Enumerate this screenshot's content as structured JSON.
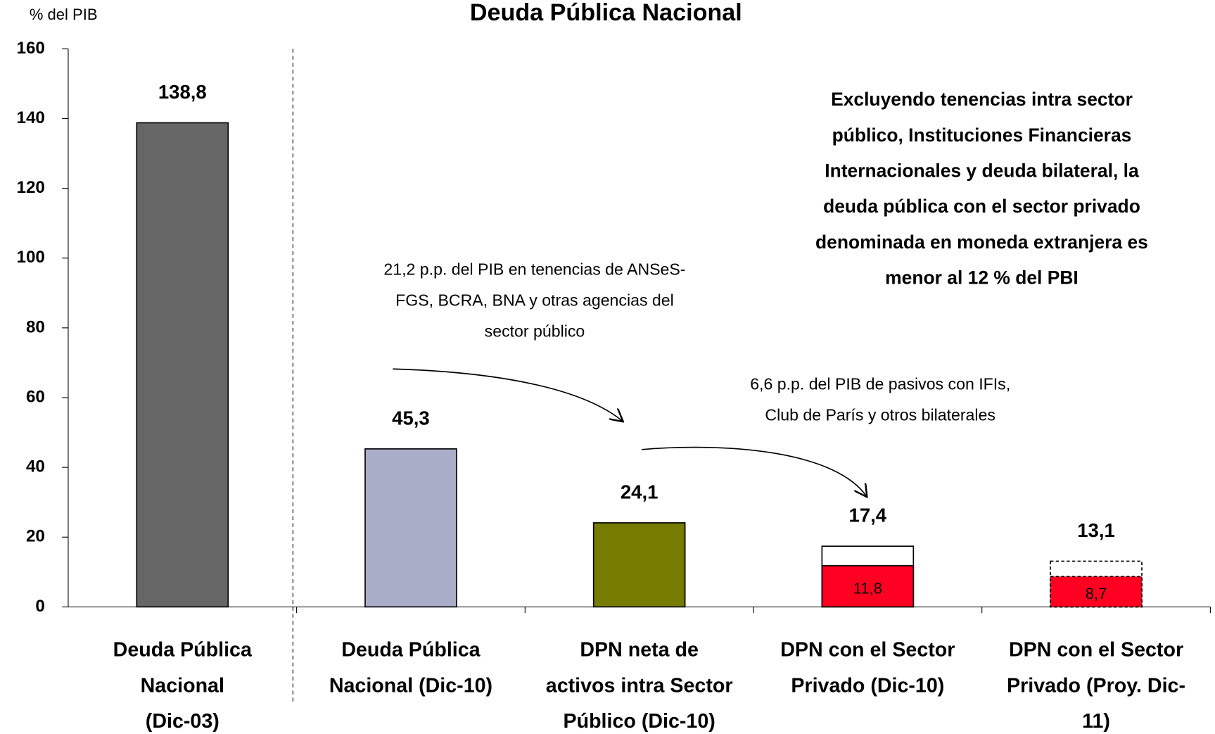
{
  "chart_data": {
    "type": "bar",
    "title": "Deuda Pública Nacional",
    "y_label": "% del PIB",
    "categories": [
      [
        "Deuda Pública",
        "Nacional",
        "(Dic-03)"
      ],
      [
        "Deuda Pública",
        "Nacional (Dic-10)"
      ],
      [
        "DPN neta de",
        "activos intra Sector",
        "Público (Dic-10)"
      ],
      [
        "DPN con el Sector",
        "Privado (Dic-10)"
      ],
      [
        "DPN con el Sector",
        "Privado (Proy. Dic-",
        "11)"
      ]
    ],
    "values": [
      138.8,
      45.3,
      24.1,
      17.4,
      13.1
    ],
    "value_labels": [
      "138,8",
      "45,3",
      "24,1",
      "17,4",
      "13,1"
    ],
    "colors": [
      "#666666",
      "#aaadc8",
      "#767c00",
      "#ffffff",
      "#ffffff"
    ],
    "outline_styles": [
      "solid",
      "solid",
      "solid",
      "solid",
      "dotted"
    ],
    "subvalues": [
      null,
      null,
      null,
      11.8,
      8.7
    ],
    "subvalue_labels": [
      null,
      null,
      null,
      "11,8",
      "8,7"
    ],
    "subvalue_color": "#ff0022",
    "ylim": [
      0,
      160
    ],
    "yticks": [
      0,
      20,
      40,
      60,
      80,
      100,
      120,
      140,
      160
    ],
    "annotations": {
      "note": [
        "Excluyendo tenencias intra sector",
        "público, Instituciones Financieras",
        "Internacionales y deuda bilateral, la",
        "deuda pública con el sector privado",
        "denominada en moneda extranjera es",
        "menor al 12 % del PBI"
      ],
      "arrow1": [
        "21,2 p.p. del PIB en tenencias de ANSeS-",
        "FGS, BCRA, BNA y otras agencias del",
        "sector público"
      ],
      "arrow2": [
        "6,6 p.p. del PIB de pasivos con IFIs,",
        "Club de París y otros bilaterales"
      ]
    }
  }
}
